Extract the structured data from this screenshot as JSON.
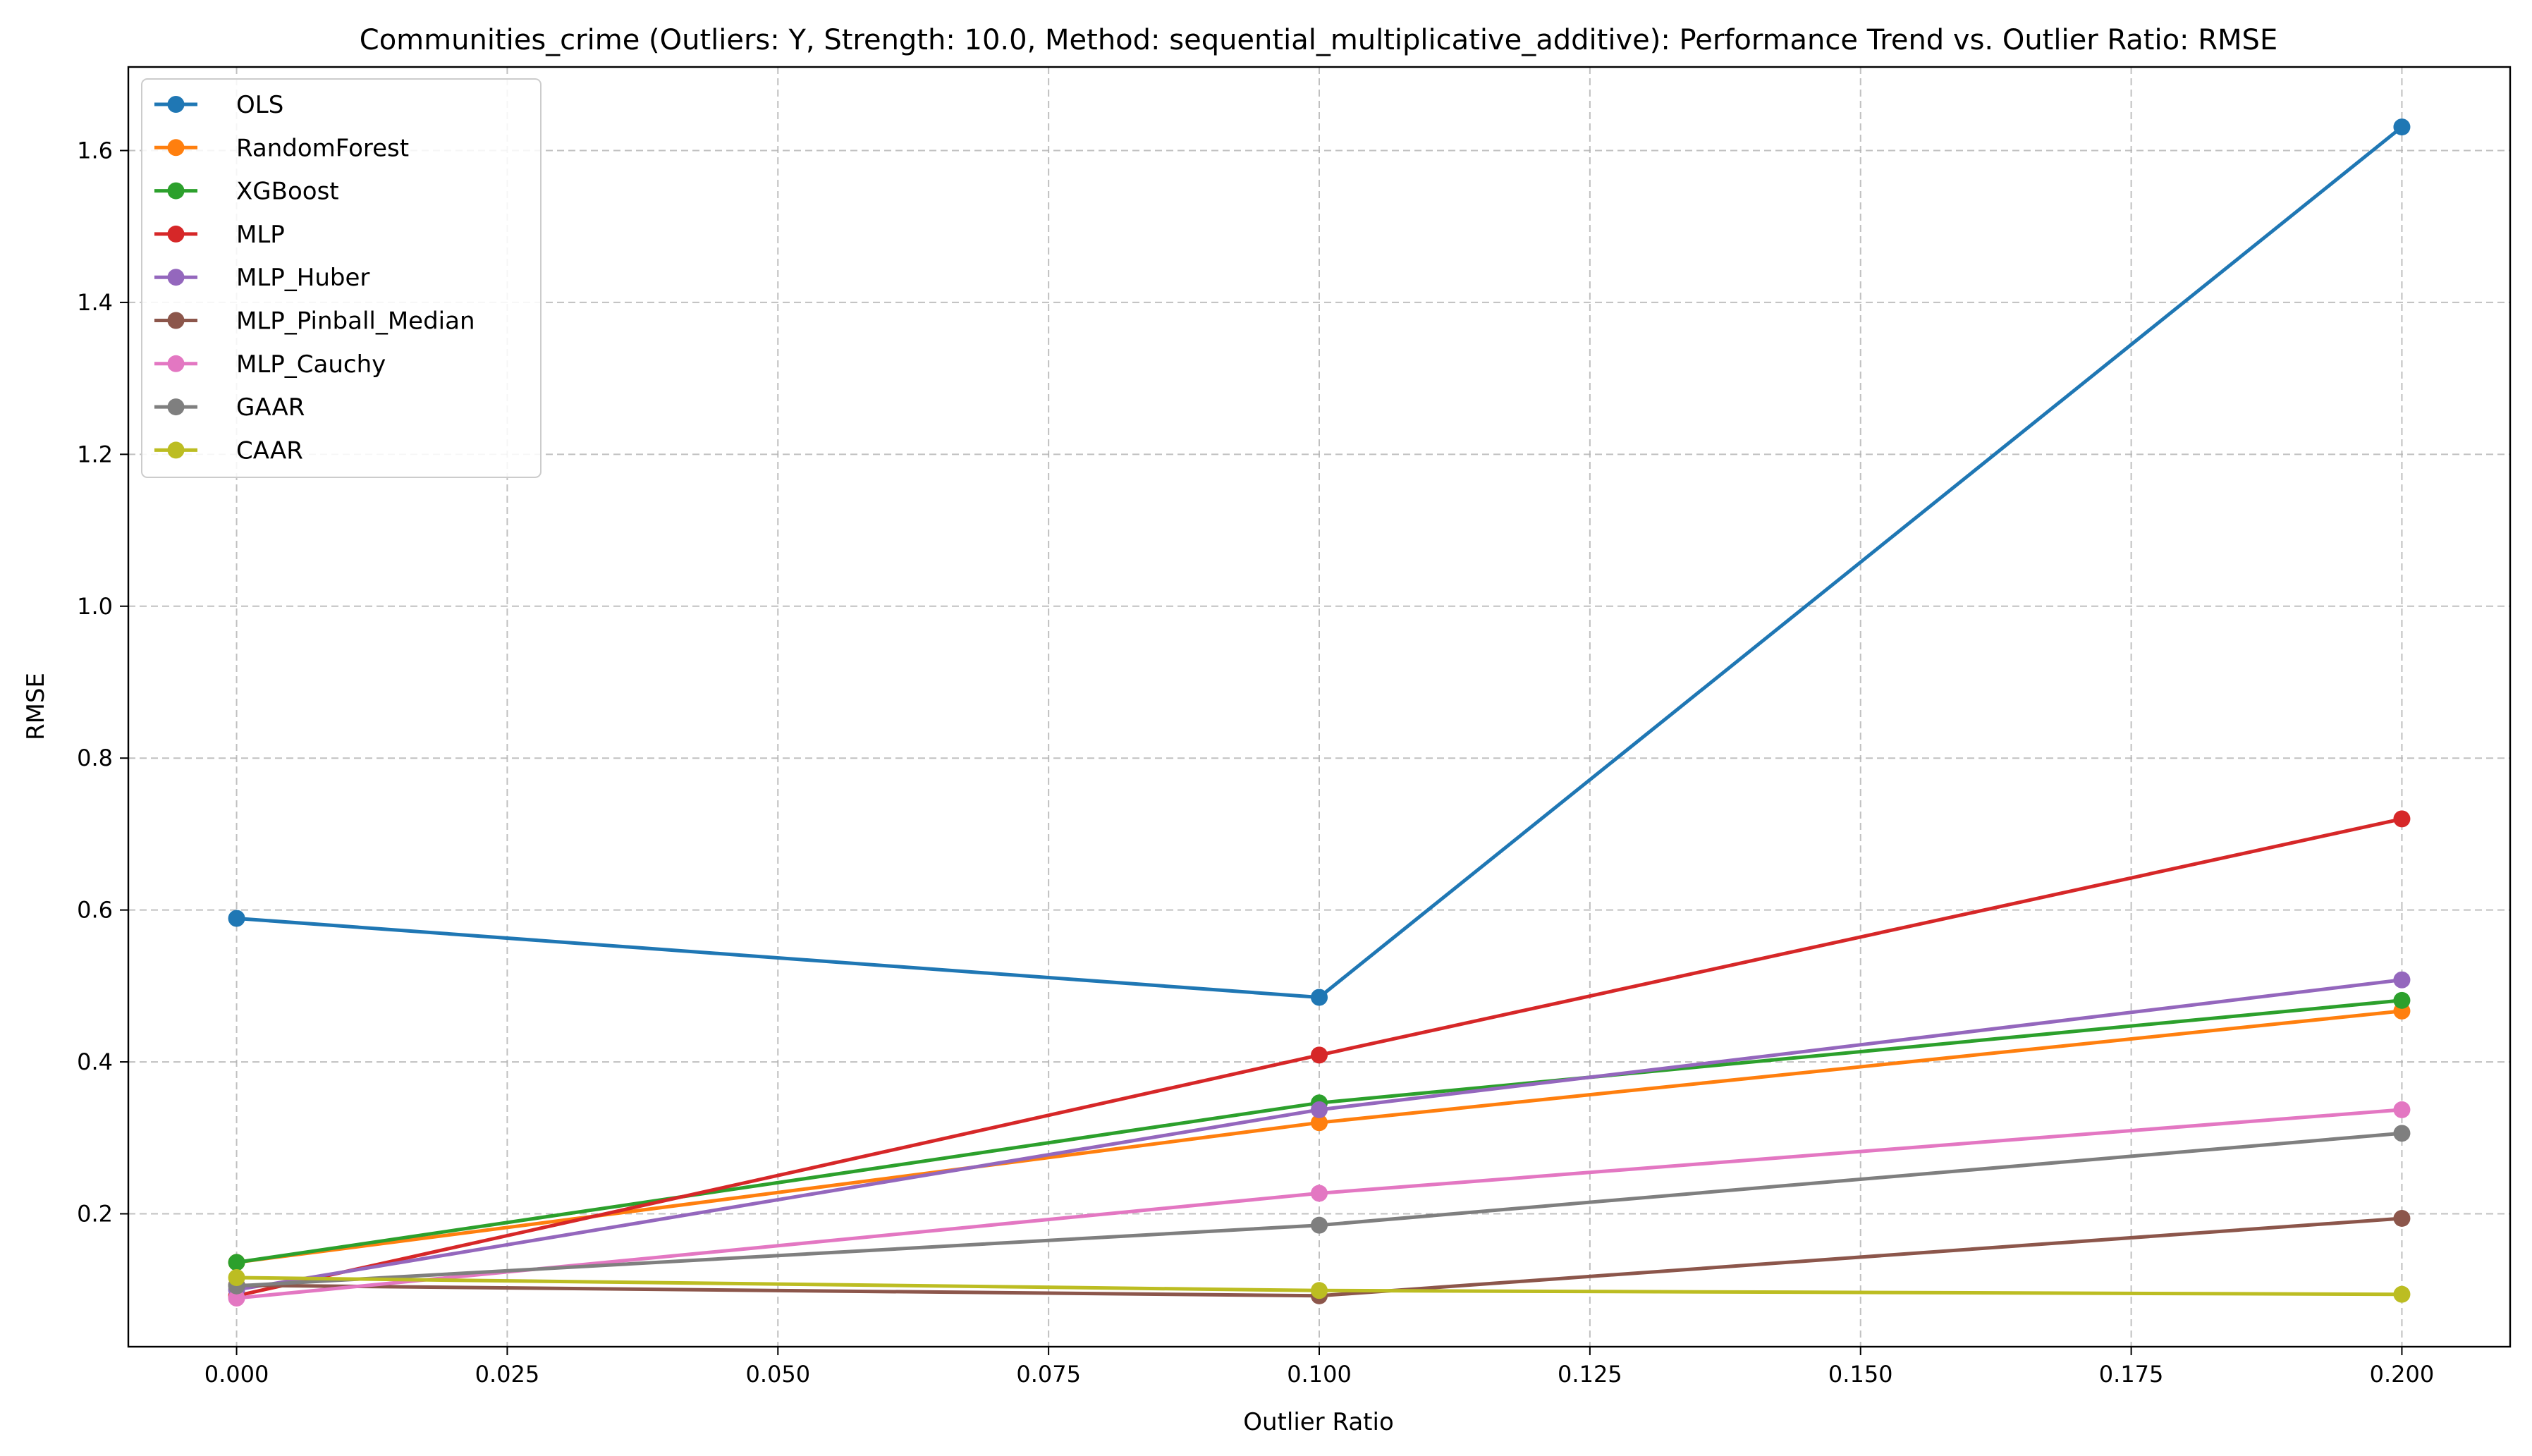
{
  "chart_data": {
    "type": "line",
    "title": "Communities_crime (Outliers: Y, Strength: 10.0, Method: sequential_multiplicative_additive): Performance Trend vs. Outlier Ratio: RMSE",
    "xlabel": "Outlier Ratio",
    "ylabel": "RMSE",
    "x": [
      0.0,
      0.1,
      0.2
    ],
    "xlim": [
      -0.01,
      0.21
    ],
    "ylim": [
      0.025,
      1.71
    ],
    "x_ticks": [
      0.0,
      0.025,
      0.05,
      0.075,
      0.1,
      0.125,
      0.15,
      0.175,
      0.2
    ],
    "x_tick_labels": [
      "0.000",
      "0.025",
      "0.050",
      "0.075",
      "0.100",
      "0.125",
      "0.150",
      "0.175",
      "0.200"
    ],
    "y_ticks": [
      0.2,
      0.4,
      0.6,
      0.8,
      1.0,
      1.2,
      1.4,
      1.6
    ],
    "y_tick_labels": [
      "0.2",
      "0.4",
      "0.6",
      "0.8",
      "1.0",
      "1.2",
      "1.4",
      "1.6"
    ],
    "grid": true,
    "legend_position": "top-left",
    "series": [
      {
        "name": "OLS",
        "color": "#1f77b4",
        "values": [
          0.589,
          0.485,
          1.631
        ]
      },
      {
        "name": "RandomForest",
        "color": "#ff7f0e",
        "values": [
          0.136,
          0.32,
          0.467
        ]
      },
      {
        "name": "XGBoost",
        "color": "#2ca02c",
        "values": [
          0.136,
          0.346,
          0.481
        ]
      },
      {
        "name": "MLP",
        "color": "#d62728",
        "values": [
          0.092,
          0.409,
          0.72
        ]
      },
      {
        "name": "MLP_Huber",
        "color": "#9467bd",
        "values": [
          0.1,
          0.337,
          0.508
        ]
      },
      {
        "name": "MLP_Pinball_Median",
        "color": "#8c564b",
        "values": [
          0.106,
          0.092,
          0.194
        ]
      },
      {
        "name": "MLP_Cauchy",
        "color": "#e377c2",
        "values": [
          0.089,
          0.227,
          0.337
        ]
      },
      {
        "name": "GAAR",
        "color": "#7f7f7f",
        "values": [
          0.105,
          0.185,
          0.306
        ]
      },
      {
        "name": "CAAR",
        "color": "#bcbd22",
        "values": [
          0.116,
          0.099,
          0.094
        ]
      }
    ]
  }
}
